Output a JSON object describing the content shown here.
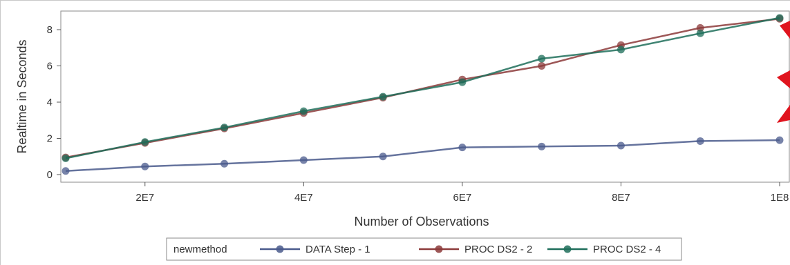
{
  "chart_data": {
    "type": "line",
    "xlabel": "Number of Observations",
    "ylabel": "Realtime in Seconds",
    "xlim": [
      10000000,
      100000000
    ],
    "ylim": [
      -0.4,
      8.9
    ],
    "x_ticks": [
      20000000,
      40000000,
      60000000,
      80000000,
      100000000
    ],
    "x_tick_labels": [
      "2E7",
      "4E7",
      "6E7",
      "8E7",
      "1E8"
    ],
    "y_ticks": [
      0,
      2,
      4,
      6,
      8
    ],
    "y_tick_labels": [
      "0",
      "2",
      "4",
      "6",
      "8"
    ],
    "grid": false,
    "legend_position": "bottom",
    "legend_title": "newmethod",
    "x": [
      10000000,
      20000000,
      30000000,
      40000000,
      50000000,
      60000000,
      70000000,
      80000000,
      90000000,
      100000000
    ],
    "series": [
      {
        "name": "DATA Step - 1",
        "color": "#4a5a8c",
        "values": [
          0.2,
          0.45,
          0.6,
          0.8,
          1.0,
          1.5,
          1.55,
          1.6,
          1.85,
          1.9
        ]
      },
      {
        "name": "PROC DS2 - 2",
        "color": "#8c3a3a",
        "values": [
          0.95,
          1.75,
          2.55,
          3.4,
          4.25,
          5.25,
          6.0,
          7.15,
          8.1,
          8.6
        ]
      },
      {
        "name": "PROC DS2 - 4",
        "color": "#1e6e5a",
        "values": [
          0.9,
          1.8,
          2.6,
          3.5,
          4.3,
          5.1,
          6.4,
          6.9,
          7.8,
          8.65
        ]
      }
    ]
  }
}
